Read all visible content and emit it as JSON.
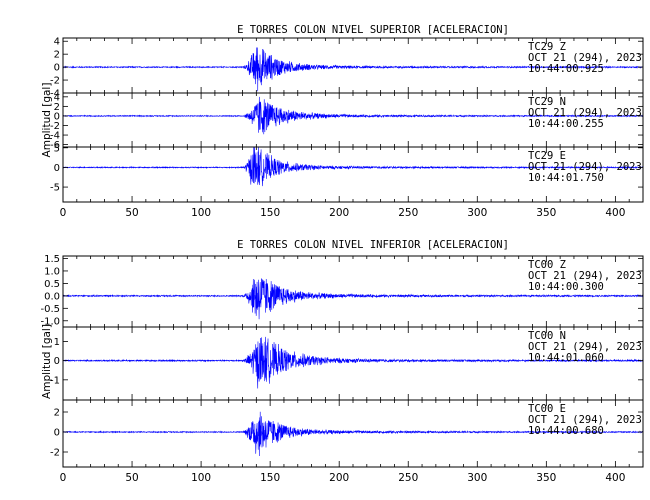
{
  "chart_data": [
    {
      "type": "line",
      "title": "E TORRES COLON NIVEL SUPERIOR [ACELERACION]",
      "ylabel": "Amplitud [gal]",
      "xlabel": "",
      "xlim": [
        0,
        420
      ],
      "xticks": [
        "0",
        "50",
        "100",
        "150",
        "200",
        "250",
        "300",
        "350",
        "400"
      ],
      "xtick_values": [
        0,
        50,
        100,
        150,
        200,
        250,
        300,
        350,
        400
      ],
      "line_color": "#0000ff",
      "panels": [
        {
          "station": "TC29",
          "component": "Z",
          "date": "OCT 21 (294), 2023",
          "time": "10:44:00.925",
          "ylim": [
            -4,
            4.5
          ],
          "yticks": [
            "4",
            "2",
            "0",
            "-2",
            "-4"
          ],
          "ytick_values": [
            4,
            2,
            0,
            -2,
            -4
          ],
          "envelope": {
            "onset": 130,
            "peak_time": 140,
            "peak_amp": 4.2,
            "noise": 0.1,
            "decay": 14
          }
        },
        {
          "station": "TC29",
          "component": "N",
          "date": "OCT 21 (294), 2023",
          "time": "10:44:00.255",
          "ylim": [
            -6.5,
            4.8
          ],
          "yticks": [
            "4",
            "2",
            "0",
            "-2",
            "-4",
            "-6"
          ],
          "ytick_values": [
            4,
            2,
            0,
            -2,
            -4,
            -6
          ],
          "envelope": {
            "onset": 130,
            "peak_time": 142,
            "peak_amp": 5.0,
            "noise": 0.12,
            "decay": 16
          }
        },
        {
          "station": "TC29",
          "component": "E",
          "date": "OCT 21 (294), 2023",
          "time": "10:44:01.750",
          "ylim": [
            -8.8,
            5.2
          ],
          "yticks": [
            "5",
            "0",
            "-5"
          ],
          "ytick_values": [
            5,
            0,
            -5
          ],
          "envelope": {
            "onset": 130,
            "peak_time": 138,
            "peak_amp": 7.0,
            "noise": 0.15,
            "decay": 14
          }
        }
      ]
    },
    {
      "type": "line",
      "title": "E TORRES COLON NIVEL INFERIOR [ACELERACION]",
      "ylabel": "Amplitud [gal]",
      "xlabel": "",
      "xlim": [
        0,
        420
      ],
      "xticks": [
        "0",
        "50",
        "100",
        "150",
        "200",
        "250",
        "300",
        "350",
        "400"
      ],
      "xtick_values": [
        0,
        50,
        100,
        150,
        200,
        250,
        300,
        350,
        400
      ],
      "line_color": "#0000ff",
      "panels": [
        {
          "station": "TC00",
          "component": "Z",
          "date": "OCT 21 (294), 2023",
          "time": "10:44:00.300",
          "ylim": [
            -1.25,
            1.6
          ],
          "yticks": [
            "1.5",
            "1.0",
            "0.5",
            "0.0",
            "-0.5",
            "-1.0"
          ],
          "ytick_values": [
            1.5,
            1.0,
            0.5,
            0.0,
            -0.5,
            -1.0
          ],
          "envelope": {
            "onset": 130,
            "peak_time": 140,
            "peak_amp": 1.3,
            "noise": 0.03,
            "decay": 15
          }
        },
        {
          "station": "TC00",
          "component": "N",
          "date": "OCT 21 (294), 2023",
          "time": "10:44:01.060",
          "ylim": [
            -2.05,
            1.75
          ],
          "yticks": [
            "1",
            "0",
            "-1"
          ],
          "ytick_values": [
            1,
            0,
            -1
          ],
          "envelope": {
            "onset": 130,
            "peak_time": 142,
            "peak_amp": 1.7,
            "noise": 0.04,
            "decay": 18
          }
        },
        {
          "station": "TC00",
          "component": "E",
          "date": "OCT 21 (294), 2023",
          "time": "10:44:00.680",
          "ylim": [
            -3.5,
            3.2
          ],
          "yticks": [
            "2",
            "0",
            "-2"
          ],
          "ytick_values": [
            2,
            0,
            -2
          ],
          "envelope": {
            "onset": 130,
            "peak_time": 140,
            "peak_amp": 3.0,
            "noise": 0.06,
            "decay": 14
          }
        }
      ]
    }
  ]
}
